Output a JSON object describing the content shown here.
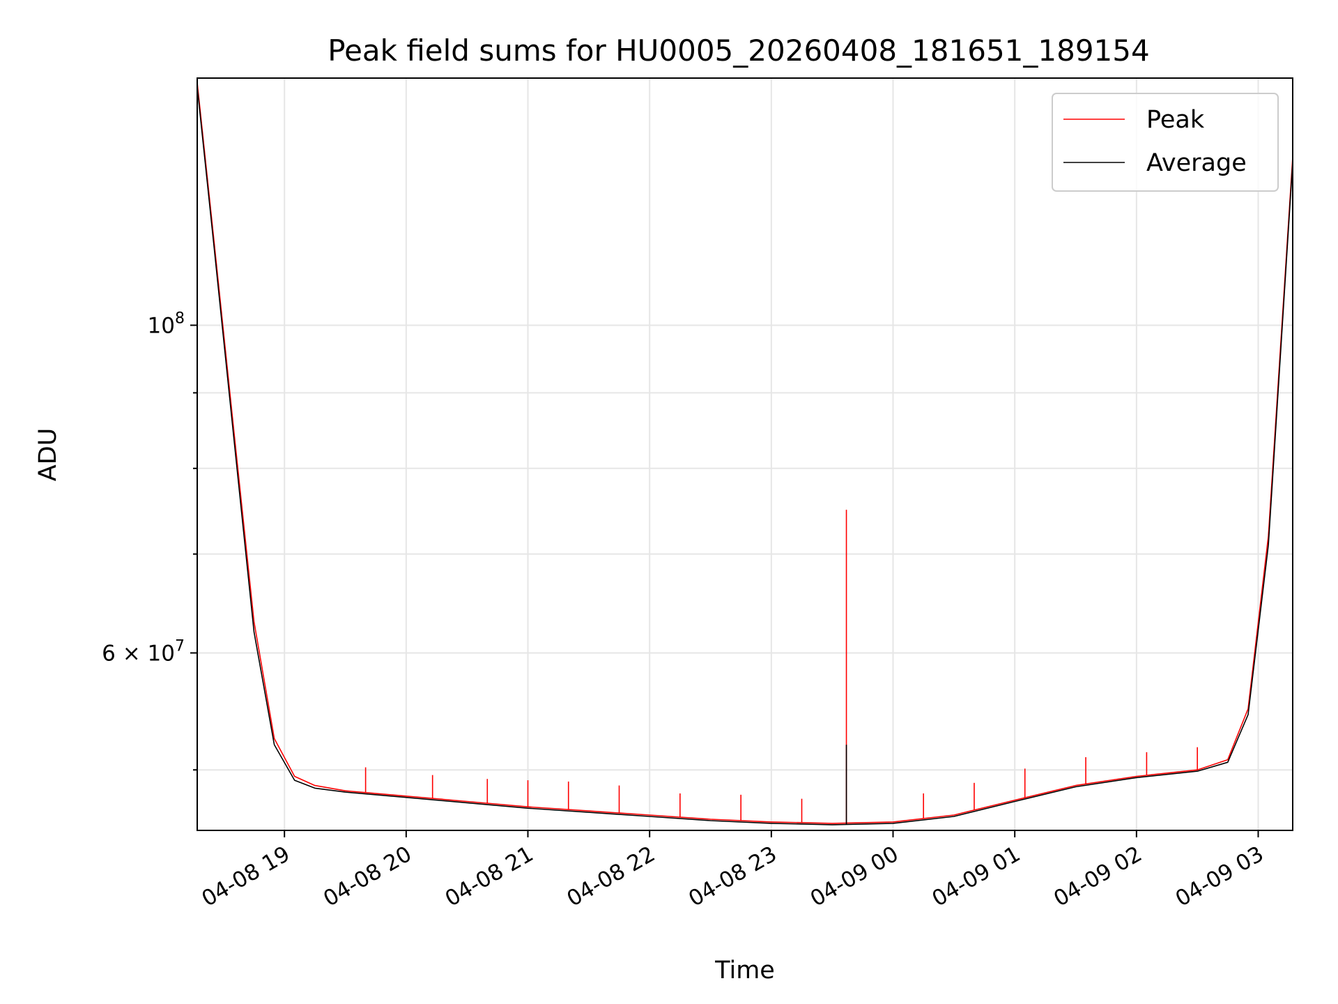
{
  "chart_data": {
    "type": "line",
    "title": "Peak field sums for HU0005_20260408_181651_189154",
    "xlabel": "Time",
    "ylabel": "ADU",
    "yscale": "log",
    "xlim": [
      "2026-04-08 18:17",
      "2026-04-09 03:17"
    ],
    "ylim": [
      45500000,
      147000000
    ],
    "grid": true,
    "legend": "top-right",
    "colors": {
      "peak": "#ff0000",
      "average": "#000000"
    },
    "x_ticks": [
      {
        "value": "2026-04-08 19:00",
        "label": "04-08 19"
      },
      {
        "value": "2026-04-08 20:00",
        "label": "04-08 20"
      },
      {
        "value": "2026-04-08 21:00",
        "label": "04-08 21"
      },
      {
        "value": "2026-04-08 22:00",
        "label": "04-08 22"
      },
      {
        "value": "2026-04-08 23:00",
        "label": "04-08 23"
      },
      {
        "value": "2026-04-09 00:00",
        "label": "04-09 00"
      },
      {
        "value": "2026-04-09 01:00",
        "label": "04-09 01"
      },
      {
        "value": "2026-04-09 02:00",
        "label": "04-09 02"
      },
      {
        "value": "2026-04-09 03:00",
        "label": "04-09 03"
      }
    ],
    "y_major_ticks": [
      {
        "value": 100000000,
        "base": "10",
        "exp": "8"
      },
      {
        "value": 60000000,
        "base": "6 × 10",
        "exp": "7"
      }
    ],
    "y_minor_ticks": [
      50000000,
      70000000,
      80000000,
      90000000
    ],
    "series": [
      {
        "name": "Peak",
        "color": "#ff0000",
        "x": [
          "2026-04-08 18:17",
          "2026-04-08 18:25",
          "2026-04-08 18:35",
          "2026-04-08 18:45",
          "2026-04-08 18:55",
          "2026-04-08 19:05",
          "2026-04-08 19:15",
          "2026-04-08 19:30",
          "2026-04-08 20:00",
          "2026-04-08 20:30",
          "2026-04-08 21:00",
          "2026-04-08 21:30",
          "2026-04-08 22:00",
          "2026-04-08 22:30",
          "2026-04-08 23:00",
          "2026-04-08 23:30",
          "2026-04-09 00:00",
          "2026-04-09 00:30",
          "2026-04-09 01:00",
          "2026-04-09 01:30",
          "2026-04-09 02:00",
          "2026-04-09 02:30",
          "2026-04-09 02:45",
          "2026-04-09 02:55",
          "2026-04-09 03:05",
          "2026-04-09 03:17"
        ],
        "values": [
          146000000,
          115000000,
          85000000,
          63000000,
          52500000,
          49500000,
          48800000,
          48400000,
          48000000,
          47600000,
          47200000,
          46900000,
          46600000,
          46300000,
          46100000,
          46000000,
          46100000,
          46600000,
          47700000,
          48800000,
          49500000,
          50000000,
          50800000,
          55000000,
          72000000,
          130000000
        ],
        "spikes": [
          {
            "x": "2026-04-08 19:40",
            "value": 50200000
          },
          {
            "x": "2026-04-08 20:13",
            "value": 49600000
          },
          {
            "x": "2026-04-08 20:40",
            "value": 49300000
          },
          {
            "x": "2026-04-08 21:00",
            "value": 49200000
          },
          {
            "x": "2026-04-08 21:20",
            "value": 49100000
          },
          {
            "x": "2026-04-08 21:45",
            "value": 48800000
          },
          {
            "x": "2026-04-08 22:15",
            "value": 48200000
          },
          {
            "x": "2026-04-08 22:45",
            "value": 48100000
          },
          {
            "x": "2026-04-08 23:15",
            "value": 47800000
          },
          {
            "x": "2026-04-08 23:37",
            "value": 75000000
          },
          {
            "x": "2026-04-09 00:15",
            "value": 48200000
          },
          {
            "x": "2026-04-09 00:40",
            "value": 49000000
          },
          {
            "x": "2026-04-09 01:05",
            "value": 50100000
          },
          {
            "x": "2026-04-09 01:35",
            "value": 51000000
          },
          {
            "x": "2026-04-09 02:05",
            "value": 51400000
          },
          {
            "x": "2026-04-09 02:30",
            "value": 51800000
          }
        ]
      },
      {
        "name": "Average",
        "color": "#000000",
        "x": [
          "2026-04-08 18:17",
          "2026-04-08 18:25",
          "2026-04-08 18:35",
          "2026-04-08 18:45",
          "2026-04-08 18:55",
          "2026-04-08 19:05",
          "2026-04-08 19:15",
          "2026-04-08 19:30",
          "2026-04-08 20:00",
          "2026-04-08 20:30",
          "2026-04-08 21:00",
          "2026-04-08 21:30",
          "2026-04-08 22:00",
          "2026-04-08 22:30",
          "2026-04-08 23:00",
          "2026-04-08 23:30",
          "2026-04-09 00:00",
          "2026-04-09 00:30",
          "2026-04-09 01:00",
          "2026-04-09 01:30",
          "2026-04-09 02:00",
          "2026-04-09 02:30",
          "2026-04-09 02:45",
          "2026-04-09 02:55",
          "2026-04-09 03:05",
          "2026-04-09 03:17"
        ],
        "values": [
          145000000,
          114000000,
          84000000,
          62000000,
          52000000,
          49200000,
          48600000,
          48300000,
          47900000,
          47500000,
          47100000,
          46800000,
          46500000,
          46200000,
          46000000,
          45900000,
          46000000,
          46500000,
          47600000,
          48700000,
          49400000,
          49900000,
          50600000,
          54500000,
          71000000,
          129000000
        ],
        "spikes": [
          {
            "x": "2026-04-08 23:37",
            "value": 52000000
          }
        ]
      }
    ]
  }
}
